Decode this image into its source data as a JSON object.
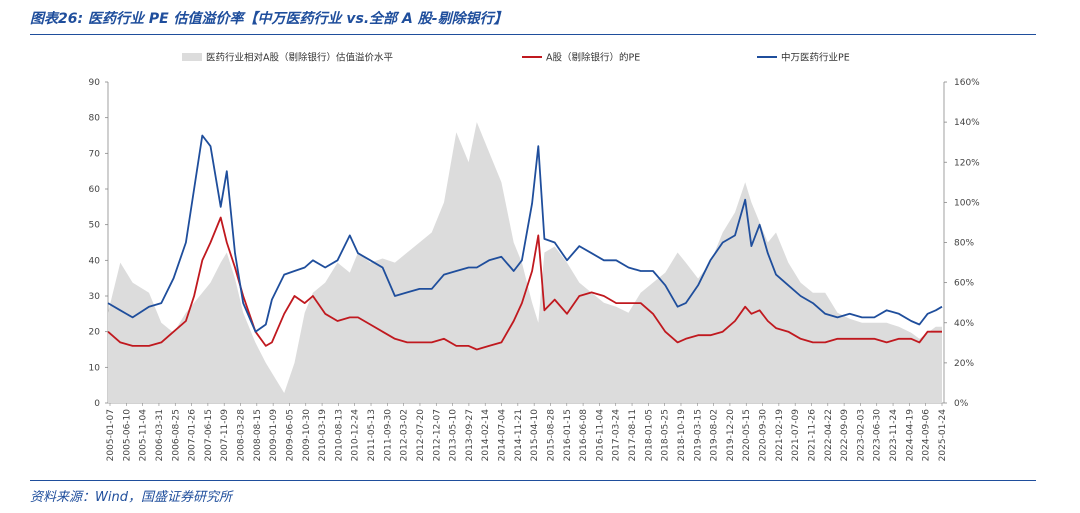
{
  "header": {
    "title": "图表26:  医药行业 PE 估值溢价率【中万医药行业 vs.全部 A 股-剔除银行】"
  },
  "footer": {
    "source": "资料来源：Wind，国盛证券研究所"
  },
  "colors": {
    "premium_fill": "#dcdcdc",
    "a_share_line": "#c0191f",
    "pharma_line": "#1f4e9c",
    "title": "#1f4e9c"
  },
  "chart_data": {
    "type": "line",
    "title": "",
    "legend": {
      "placement": "top",
      "items": [
        "医药行业相对A股（剔除银行）估值溢价水平",
        "A股（剔除银行）的PE",
        "中万医药行业PE"
      ]
    },
    "left_axis": {
      "ylim": [
        0,
        90
      ],
      "ticks": [
        "0",
        "10",
        "20",
        "30",
        "40",
        "50",
        "60",
        "70",
        "80",
        "90"
      ]
    },
    "right_axis": {
      "ylim": [
        0,
        160
      ],
      "ticks": [
        "0%",
        "20%",
        "40%",
        "60%",
        "80%",
        "100%",
        "120%",
        "140%",
        "160%"
      ]
    },
    "x_tick_labels": [
      "2005-01-07",
      "2005-06-10",
      "2005-11-04",
      "2006-03-31",
      "2006-08-25",
      "2007-01-26",
      "2007-06-15",
      "2007-11-09",
      "2008-03-28",
      "2008-08-15",
      "2009-01-09",
      "2009-06-05",
      "2009-10-30",
      "2010-03-19",
      "2010-08-13",
      "2010-12-24",
      "2011-05-13",
      "2011-09-30",
      "2012-03-02",
      "2012-07-20",
      "2012-12-07",
      "2013-05-10",
      "2013-09-27",
      "2014-02-14",
      "2014-07-04",
      "2014-11-21",
      "2015-04-10",
      "2015-08-28",
      "2016-01-15",
      "2016-06-08",
      "2016-11-04",
      "2017-03-24",
      "2017-08-11",
      "2018-01-05",
      "2018-05-25",
      "2018-10-19",
      "2019-03-15",
      "2019-08-02",
      "2019-12-20",
      "2020-05-15",
      "2020-09-30",
      "2021-02-19",
      "2021-07-09",
      "2021-11-26",
      "2022-04-22",
      "2022-09-09",
      "2023-02-03",
      "2023-06-30",
      "2023-11-24",
      "2024-04-19",
      "2024-09-06",
      "2025-01-24"
    ],
    "x": [
      2005.0,
      2005.3,
      2005.6,
      2006.0,
      2006.3,
      2006.6,
      2006.9,
      2007.1,
      2007.3,
      2007.5,
      2007.75,
      2007.9,
      2008.1,
      2008.3,
      2008.6,
      2008.85,
      2009.0,
      2009.3,
      2009.55,
      2009.8,
      2010.0,
      2010.3,
      2010.6,
      2010.9,
      2011.1,
      2011.4,
      2011.7,
      2012.0,
      2012.3,
      2012.6,
      2012.9,
      2013.2,
      2013.5,
      2013.8,
      2014.0,
      2014.3,
      2014.6,
      2014.9,
      2015.1,
      2015.35,
      2015.5,
      2015.65,
      2015.9,
      2016.2,
      2016.5,
      2016.8,
      2017.1,
      2017.4,
      2017.7,
      2018.0,
      2018.3,
      2018.6,
      2018.9,
      2019.1,
      2019.4,
      2019.7,
      2020.0,
      2020.3,
      2020.55,
      2020.7,
      2020.9,
      2021.1,
      2021.3,
      2021.6,
      2021.9,
      2022.2,
      2022.5,
      2022.8,
      2023.1,
      2023.4,
      2023.7,
      2024.0,
      2024.3,
      2024.6,
      2024.8,
      2025.0,
      2025.2,
      2025.35
    ],
    "series": [
      {
        "name": "医药行业相对A股（剔除银行）估值溢价水平",
        "axis": "right",
        "style": "area",
        "values": [
          45,
          70,
          60,
          55,
          40,
          35,
          45,
          50,
          55,
          60,
          70,
          75,
          62,
          45,
          30,
          20,
          15,
          5,
          20,
          45,
          55,
          60,
          70,
          65,
          75,
          70,
          72,
          70,
          75,
          80,
          85,
          100,
          135,
          120,
          140,
          125,
          110,
          80,
          70,
          50,
          40,
          75,
          78,
          70,
          60,
          55,
          50,
          48,
          45,
          55,
          60,
          65,
          75,
          70,
          62,
          70,
          85,
          95,
          110,
          100,
          90,
          80,
          85,
          70,
          60,
          55,
          55,
          45,
          42,
          40,
          40,
          40,
          38,
          35,
          32,
          35,
          38,
          38
        ]
      },
      {
        "name": "A股（剔除银行）的PE",
        "axis": "left",
        "style": "line",
        "values": [
          20,
          17,
          16,
          16,
          17,
          20,
          23,
          30,
          40,
          45,
          52,
          45,
          38,
          30,
          20,
          16,
          17,
          25,
          30,
          28,
          30,
          25,
          23,
          24,
          24,
          22,
          20,
          18,
          17,
          17,
          17,
          18,
          16,
          16,
          15,
          16,
          17,
          23,
          28,
          37,
          47,
          26,
          29,
          25,
          30,
          31,
          30,
          28,
          28,
          28,
          25,
          20,
          17,
          18,
          19,
          19,
          20,
          23,
          27,
          25,
          26,
          23,
          21,
          20,
          18,
          17,
          17,
          18,
          18,
          18,
          18,
          17,
          18,
          18,
          17,
          20,
          20,
          20
        ]
      },
      {
        "name": "中万医药行业PE",
        "axis": "left",
        "style": "line",
        "values": [
          28,
          26,
          24,
          27,
          28,
          35,
          45,
          60,
          75,
          72,
          55,
          65,
          42,
          28,
          20,
          22,
          29,
          36,
          37,
          38,
          40,
          38,
          40,
          47,
          42,
          40,
          38,
          30,
          31,
          32,
          32,
          36,
          37,
          38,
          38,
          40,
          41,
          37,
          40,
          56,
          72,
          46,
          45,
          40,
          44,
          42,
          40,
          40,
          38,
          37,
          37,
          33,
          27,
          28,
          33,
          40,
          45,
          47,
          57,
          44,
          50,
          42,
          36,
          33,
          30,
          28,
          25,
          24,
          25,
          24,
          24,
          26,
          25,
          23,
          22,
          25,
          26,
          27
        ]
      }
    ]
  }
}
